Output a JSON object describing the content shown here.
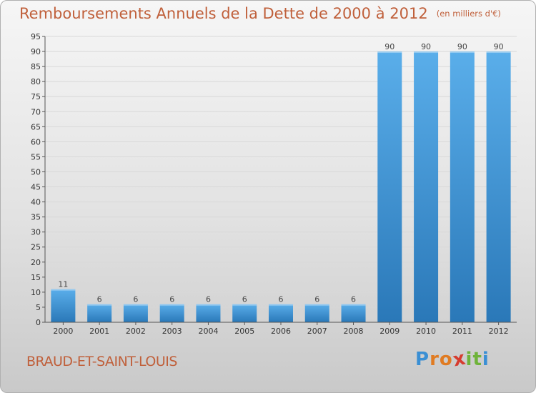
{
  "header": {
    "title": "Remboursements Annuels de la Dette de 2000 à 2012",
    "unit": "(en milliers d'€)"
  },
  "footer": {
    "town": "BRAUD-ET-SAINT-LOUIS",
    "logo_letters": [
      "P",
      "r",
      "o",
      "x",
      "i",
      "t",
      "i"
    ],
    "logo_colors": [
      "#3a8fd4",
      "#e07b22",
      "#e07b22",
      "#d63c2f",
      "#6fb33a",
      "#6fb33a",
      "#3a8fd4"
    ]
  },
  "chart_data": {
    "type": "bar",
    "title": "Remboursements Annuels de la Dette de 2000 à 2012",
    "categories": [
      "2000",
      "2001",
      "2002",
      "2003",
      "2004",
      "2005",
      "2006",
      "2007",
      "2008",
      "2009",
      "2010",
      "2011",
      "2012"
    ],
    "values": [
      11,
      6,
      6,
      6,
      6,
      6,
      6,
      6,
      6,
      90,
      90,
      90,
      90
    ],
    "data_labels": [
      "11",
      "6",
      "6",
      "6",
      "6",
      "6",
      "6",
      "6",
      "6",
      "90",
      "90",
      "90",
      "90"
    ],
    "yticks": [
      0,
      5,
      10,
      15,
      20,
      25,
      30,
      35,
      40,
      45,
      50,
      55,
      60,
      65,
      70,
      75,
      80,
      85,
      90,
      95
    ],
    "ylim": [
      0,
      95
    ],
    "grid": true,
    "colors": {
      "bar_top": "#5aaeea",
      "bar_bottom": "#2a78b8",
      "grid": "#d8d8d8",
      "axis": "#555555"
    }
  }
}
